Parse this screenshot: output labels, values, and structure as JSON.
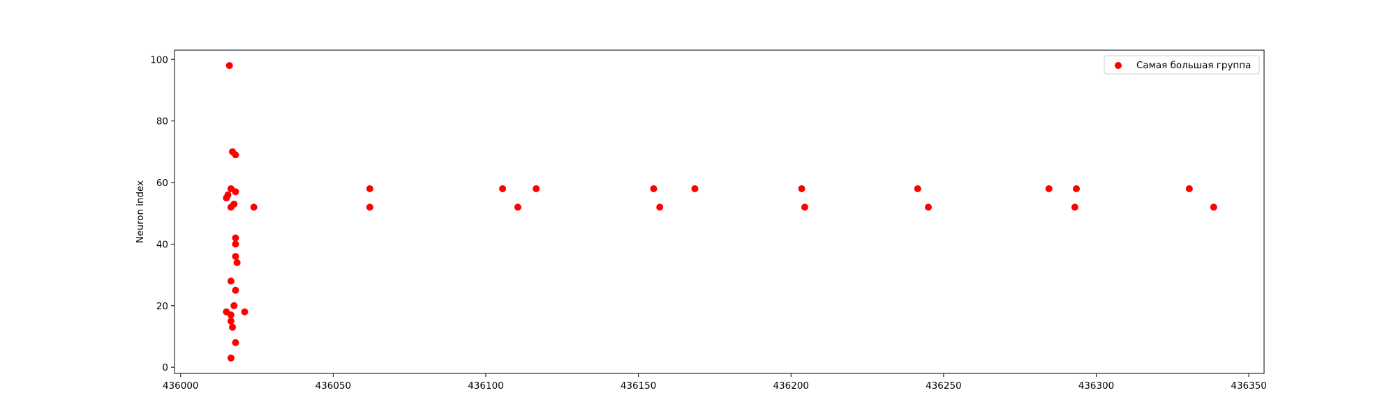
{
  "chart_data": {
    "type": "scatter",
    "title": "",
    "xlabel": "",
    "ylabel": "Neuron index",
    "xlim": [
      435998,
      436355
    ],
    "ylim": [
      -2,
      103
    ],
    "xticks": [
      436000,
      436050,
      436100,
      436150,
      436200,
      436250,
      436300,
      436350
    ],
    "yticks": [
      0,
      20,
      40,
      60,
      80,
      100
    ],
    "grid": false,
    "legend": {
      "position": "top-right",
      "entries": [
        "Самая большая группа"
      ]
    },
    "series": [
      {
        "name": "Самая большая группа",
        "color": "#ff0000",
        "x": [
          436016,
          436017,
          436018,
          436016.5,
          436018,
          436015,
          436015.5,
          436017.5,
          436016.5,
          436024,
          436018,
          436018,
          436018,
          436018.5,
          436016.5,
          436018,
          436017.5,
          436015,
          436016.5,
          436021,
          436016.5,
          436017,
          436018,
          436016.5,
          436062,
          436062,
          436105.5,
          436110.5,
          436116.5,
          436155,
          436157,
          436168.5,
          436203.5,
          436204.5,
          436241.5,
          436245,
          436284.5,
          436293,
          436293.5,
          436330.5,
          436338.5
        ],
        "y": [
          98,
          70,
          69,
          58,
          57,
          55,
          56,
          53,
          52,
          52,
          42,
          40,
          36,
          34,
          28,
          25,
          20,
          18,
          17,
          18,
          15,
          13,
          8,
          3,
          58,
          52,
          58,
          52,
          58,
          58,
          52,
          58,
          58,
          52,
          58,
          52,
          58,
          52,
          58,
          58,
          52
        ]
      }
    ]
  }
}
